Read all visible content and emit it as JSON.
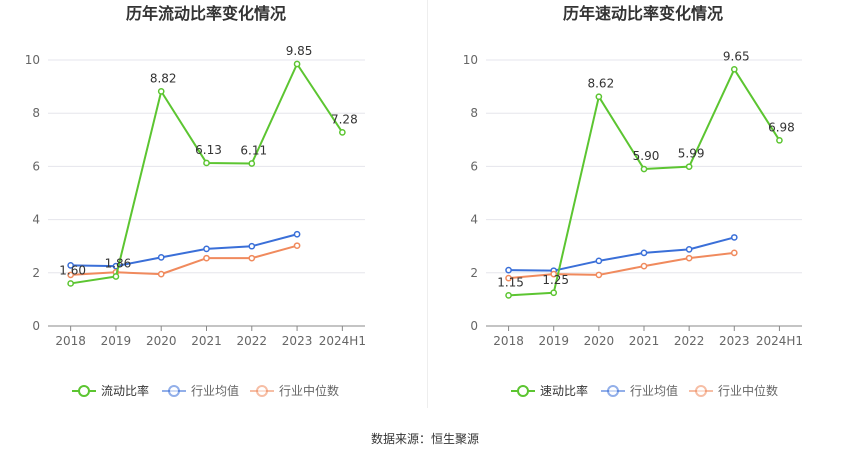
{
  "source_text": "数据来源：恒生聚源",
  "colors": {
    "green": "#5cc531",
    "blue": "#3a6fd8",
    "orange": "#f08a5d",
    "axis": "#666666",
    "grid": "#e5e5ec",
    "label": "#333333"
  },
  "chart_data": [
    {
      "type": "line",
      "title": "历年流动比率变化情况",
      "categories": [
        "2018",
        "2019",
        "2020",
        "2021",
        "2022",
        "2023",
        "2024H1"
      ],
      "ylim": [
        0,
        10
      ],
      "yticks": [
        "0",
        "2",
        "4",
        "6",
        "8",
        "10"
      ],
      "grid": true,
      "legend_position": "bottom",
      "series": [
        {
          "name": "流动比率",
          "color": "#5cc531",
          "labeled": true,
          "values": [
            1.6,
            1.86,
            8.82,
            6.13,
            6.11,
            9.85,
            7.28
          ],
          "labels": [
            "1.60",
            "1.86",
            "8.82",
            "6.13",
            "6.11",
            "9.85",
            "7.28"
          ]
        },
        {
          "name": "行业均值",
          "color": "#3a6fd8",
          "labeled": false,
          "values": [
            2.28,
            2.25,
            2.58,
            2.9,
            3.0,
            3.45,
            null
          ]
        },
        {
          "name": "行业中位数",
          "color": "#f08a5d",
          "labeled": false,
          "values": [
            1.92,
            2.02,
            1.95,
            2.55,
            2.55,
            3.02,
            null
          ]
        }
      ]
    },
    {
      "type": "line",
      "title": "历年速动比率变化情况",
      "categories": [
        "2018",
        "2019",
        "2020",
        "2021",
        "2022",
        "2023",
        "2024H1"
      ],
      "ylim": [
        0,
        10
      ],
      "yticks": [
        "0",
        "2",
        "4",
        "6",
        "8",
        "10"
      ],
      "grid": true,
      "legend_position": "bottom",
      "series": [
        {
          "name": "速动比率",
          "color": "#5cc531",
          "labeled": true,
          "values": [
            1.15,
            1.25,
            8.62,
            5.9,
            5.99,
            9.65,
            6.98
          ],
          "labels": [
            "1.15",
            "1.25",
            "8.62",
            "5.90",
            "5.99",
            "9.65",
            "6.98"
          ]
        },
        {
          "name": "行业均值",
          "color": "#3a6fd8",
          "labeled": false,
          "values": [
            2.1,
            2.08,
            2.45,
            2.75,
            2.88,
            3.33,
            null
          ]
        },
        {
          "name": "行业中位数",
          "color": "#f08a5d",
          "labeled": false,
          "values": [
            1.8,
            1.95,
            1.92,
            2.25,
            2.55,
            2.75,
            null
          ]
        }
      ]
    }
  ]
}
